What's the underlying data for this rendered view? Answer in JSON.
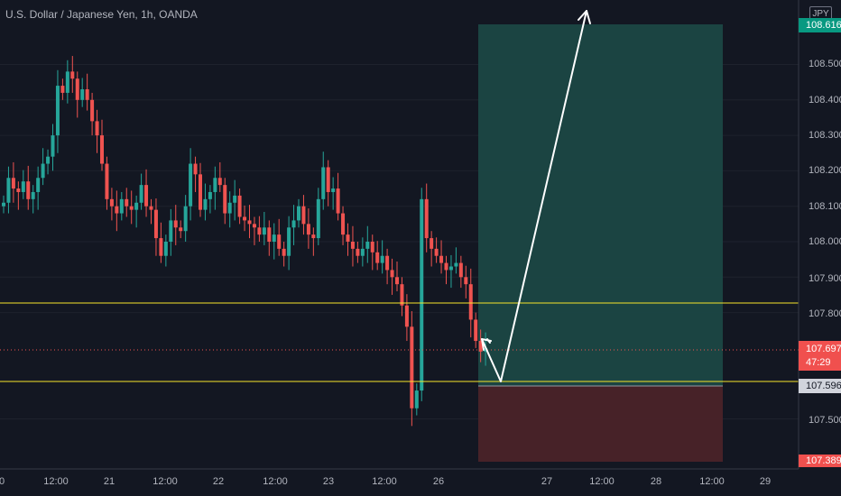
{
  "header": {
    "title": "U.S. Dollar / Japanese Yen, 1h, OANDA"
  },
  "currency_button": "JPY",
  "x_axis": {
    "labels": [
      "0",
      "12:00",
      "21",
      "12:00",
      "22",
      "12:00",
      "23",
      "12:00",
      "26",
      "27",
      "12:00",
      "28",
      "12:00",
      "29"
    ]
  },
  "y_axis": {
    "labels": [
      "108.500",
      "108.400",
      "108.300",
      "108.200",
      "108.100",
      "108.000",
      "107.900",
      "107.800",
      "107.500"
    ]
  },
  "price_labels": {
    "target": "108.616",
    "current": "107.697",
    "countdown": "47:29",
    "entry": "107.596",
    "stop": "107.389"
  },
  "colors": {
    "up": "#26a69a",
    "down": "#ef5350",
    "background": "#131722",
    "support_line": "#f7e52a",
    "profit_zone": "#1d4a47",
    "loss_zone": "#4a2428"
  },
  "chart_data": {
    "type": "candlestick",
    "title": "U.S. Dollar / Japanese Yen, 1h, OANDA",
    "x_ticks": [
      "0",
      "12:00",
      "21",
      "12:00",
      "22",
      "12:00",
      "23",
      "12:00",
      "26",
      "27",
      "12:00",
      "28",
      "12:00",
      "29"
    ],
    "y_ticks": [
      107.5,
      107.8,
      107.9,
      108.0,
      108.1,
      108.2,
      108.3,
      108.4,
      108.5
    ],
    "ylim": [
      107.38,
      108.66
    ],
    "closes": [
      108.11,
      108.18,
      108.15,
      108.14,
      108.17,
      108.12,
      108.14,
      108.18,
      108.22,
      108.24,
      108.3,
      108.44,
      108.42,
      108.48,
      108.46,
      108.4,
      108.43,
      108.4,
      108.34,
      108.3,
      108.22,
      108.12,
      108.1,
      108.08,
      108.12,
      108.1,
      108.09,
      108.11,
      108.16,
      108.1,
      108.09,
      108.01,
      107.96,
      108.0,
      108.06,
      108.04,
      108.03,
      108.1,
      108.22,
      108.19,
      108.09,
      108.12,
      108.14,
      108.18,
      108.16,
      108.08,
      108.11,
      108.13,
      108.07,
      108.06,
      108.05,
      108.04,
      108.02,
      108.04,
      108.0,
      108.02,
      107.98,
      107.96,
      108.04,
      108.06,
      108.1,
      108.05,
      108.02,
      108.01,
      108.12,
      108.21,
      108.14,
      108.15,
      108.08,
      108.02,
      108.0,
      107.98,
      107.96,
      107.98,
      108.0,
      107.97,
      107.94,
      107.96,
      107.92,
      107.9,
      107.88,
      107.82,
      107.76,
      107.53,
      107.58,
      108.12,
      108.01,
      107.98,
      107.96,
      107.94,
      107.92,
      107.93,
      107.94,
      107.9,
      107.88,
      107.78,
      107.72,
      107.69,
      107.7
    ],
    "support_levels": [
      107.83,
      107.604
    ],
    "current_price": 107.697,
    "position": {
      "type": "long",
      "entry": 107.596,
      "target": 108.616,
      "stop": 107.389
    },
    "projection_arrows": 2
  }
}
